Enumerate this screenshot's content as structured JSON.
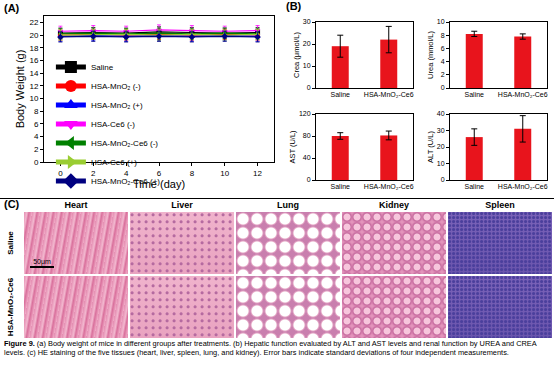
{
  "panel_labels": {
    "A": "(A)",
    "B": "(B)",
    "C": "(C)"
  },
  "chart_data": [
    {
      "type": "line",
      "x_label": "Time (day)",
      "y_label": "Body Weight (g)",
      "x": [
        0,
        2,
        4,
        6,
        8,
        10,
        12
      ],
      "xlim": [
        -1,
        13
      ],
      "xticks": [
        0,
        2,
        4,
        6,
        8,
        10,
        12
      ],
      "ylim": [
        0,
        23
      ],
      "yticks": [
        0,
        2,
        4,
        6,
        8,
        10,
        12,
        14,
        16,
        18,
        20,
        22
      ],
      "grid": false,
      "legend": "center left",
      "line_style": "solid",
      "series": [
        {
          "name": "Saline",
          "color": "#000000",
          "marker": "square",
          "values": [
            20.3,
            20.4,
            20.3,
            20.5,
            20.4,
            20.3,
            20.4
          ],
          "error": [
            0.8,
            0.8,
            0.8,
            0.8,
            0.8,
            0.8,
            0.8
          ]
        },
        {
          "name": "HSA-MnO₂ (-)",
          "color": "#ff0000",
          "marker": "circle",
          "values": [
            20.0,
            20.1,
            20.0,
            20.1,
            20.0,
            20.1,
            20.0
          ],
          "error": [
            0.8,
            0.8,
            0.8,
            0.8,
            0.8,
            0.8,
            0.8
          ]
        },
        {
          "name": "HSA-MnO₂ (+)",
          "color": "#0000ff",
          "marker": "triangle-up",
          "values": [
            19.8,
            19.9,
            19.8,
            19.9,
            19.8,
            19.9,
            19.8
          ],
          "error": [
            0.8,
            0.8,
            0.8,
            0.8,
            0.8,
            0.8,
            0.8
          ]
        },
        {
          "name": "HSA-Ce6 (-)",
          "color": "#ff00ff",
          "marker": "triangle-down",
          "values": [
            20.6,
            20.7,
            20.6,
            20.8,
            20.7,
            20.6,
            20.7
          ],
          "error": [
            0.8,
            0.8,
            0.8,
            0.8,
            0.8,
            0.8,
            0.8
          ]
        },
        {
          "name": "HSA-MnO₂-Ce6 (-)",
          "color": "#008000",
          "marker": "triangle-left",
          "values": [
            20.2,
            20.3,
            20.2,
            20.3,
            20.2,
            20.3,
            20.2
          ],
          "error": [
            0.8,
            0.8,
            0.8,
            0.8,
            0.8,
            0.8,
            0.8
          ]
        },
        {
          "name": "HSA-Ce6 (+)",
          "color": "#9acd32",
          "marker": "triangle-right",
          "values": [
            20.0,
            20.1,
            20.1,
            20.0,
            20.1,
            20.0,
            20.1
          ],
          "error": [
            0.8,
            0.8,
            0.8,
            0.8,
            0.8,
            0.8,
            0.8
          ]
        },
        {
          "name": "HSA-MnO₂-Ce6 (+)",
          "color": "#000080",
          "marker": "diamond",
          "values": [
            19.7,
            19.8,
            19.7,
            19.8,
            19.7,
            19.8,
            19.7
          ],
          "error": [
            0.8,
            0.8,
            0.8,
            0.8,
            0.8,
            0.8,
            0.8
          ]
        }
      ]
    },
    {
      "type": "bar",
      "y_label": "Crea (μmol/L)",
      "categories": [
        "Saline",
        "HSA-MnO₂-Ce6"
      ],
      "values": [
        19,
        22
      ],
      "error": [
        5,
        6
      ],
      "color": "#e8141c",
      "ylim": [
        0,
        30
      ],
      "yticks": [
        0,
        10,
        20,
        30
      ],
      "grid": false
    },
    {
      "type": "bar",
      "y_label": "Urea (mmol/L)",
      "categories": [
        "Saline",
        "HSA-MnO₂-Ce6"
      ],
      "values": [
        8.2,
        7.8
      ],
      "error": [
        0.4,
        0.4
      ],
      "color": "#e8141c",
      "ylim": [
        0,
        10
      ],
      "yticks": [
        0,
        2,
        4,
        6,
        8,
        10
      ],
      "grid": false
    },
    {
      "type": "bar",
      "y_label": "AST (U/L)",
      "categories": [
        "Saline",
        "HSA-MnO₂-Ce6"
      ],
      "values": [
        80,
        81
      ],
      "error": [
        6,
        8
      ],
      "color": "#e8141c",
      "ylim": [
        0,
        120
      ],
      "yticks": [
        0,
        40,
        80,
        120
      ],
      "grid": false
    },
    {
      "type": "bar",
      "y_label": "ALT (U/L)",
      "categories": [
        "Saline",
        "HSA-MnO₂-Ce6"
      ],
      "values": [
        26,
        31
      ],
      "error": [
        5,
        8
      ],
      "color": "#e8141c",
      "ylim": [
        0,
        40
      ],
      "yticks": [
        0,
        10,
        20,
        30,
        40
      ],
      "grid": false
    }
  ],
  "histology": {
    "columns": [
      "Heart",
      "Liver",
      "Lung",
      "Kidney",
      "Spleen"
    ],
    "rows": [
      "Saline",
      "HSA-MnO₂-Ce6"
    ],
    "scale_bar": "50μm"
  },
  "caption": {
    "label": "Figure 9.",
    "text": "(a) Body weight of mice in different groups after treatments. (b) Hepatic function evaluated by ALT and AST levels and renal function by UREA and CREA levels. (c) HE staining of the five tissues (heart, liver, spleen, lung, and kidney). Error bars indicate standard deviations of four independent measurements."
  }
}
